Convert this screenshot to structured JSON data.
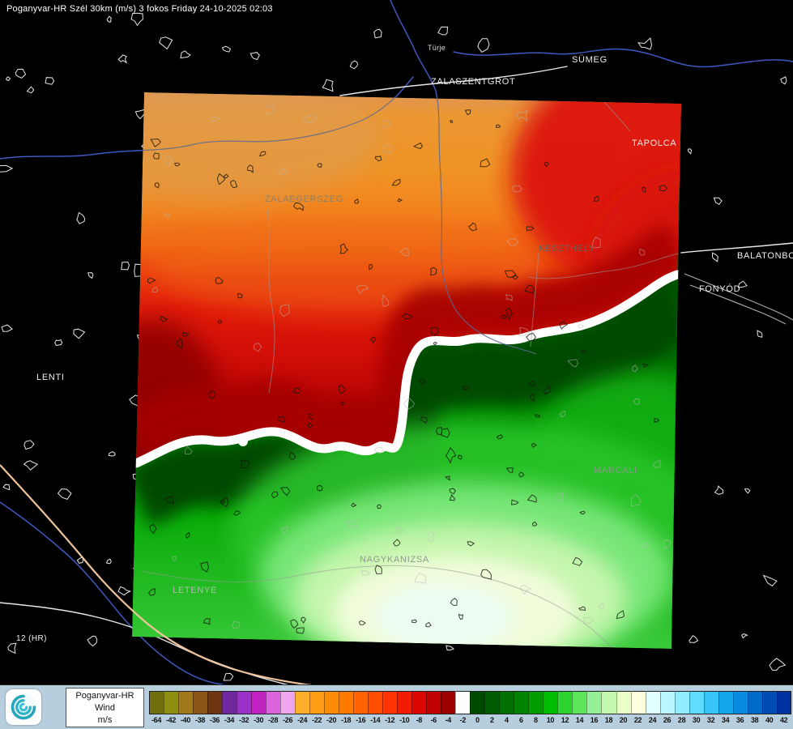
{
  "header": {
    "title": "Poganyvar-HR Szél 30km (m/s) 3 fokos Friday 24-10-2025 02:03"
  },
  "map": {
    "labels": [
      {
        "name": "Türje"
      },
      {
        "name": "SÜMEG"
      },
      {
        "name": "ZALASZENTGRÓT"
      },
      {
        "name": "TAPOLCA"
      },
      {
        "name": "ZALAEGERSZEG"
      },
      {
        "name": "KESZTHELY"
      },
      {
        "name": "BALATONBO"
      },
      {
        "name": "FONYÓD"
      },
      {
        "name": "LENTI"
      },
      {
        "name": "MARCALI"
      },
      {
        "name": "NAGYKANIZSA"
      },
      {
        "name": "LETENYE"
      },
      {
        "name": "12 (HR)"
      }
    ]
  },
  "legend": {
    "model": "Poganyvar-HR",
    "variable": "Wind",
    "unit": "m/s",
    "scale": [
      {
        "value": "-64",
        "color": "#6f6f0e"
      },
      {
        "value": "-42",
        "color": "#8f8f12"
      },
      {
        "value": "-40",
        "color": "#a1781c"
      },
      {
        "value": "-38",
        "color": "#8a5416"
      },
      {
        "value": "-36",
        "color": "#6f3410"
      },
      {
        "value": "-34",
        "color": "#71289e"
      },
      {
        "value": "-32",
        "color": "#9a32c8"
      },
      {
        "value": "-30",
        "color": "#c322c3"
      },
      {
        "value": "-28",
        "color": "#dc64dc"
      },
      {
        "value": "-26",
        "color": "#eea6ee"
      },
      {
        "value": "-24",
        "color": "#ffb02a"
      },
      {
        "value": "-22",
        "color": "#ff9e16"
      },
      {
        "value": "-20",
        "color": "#ff8c06"
      },
      {
        "value": "-18",
        "color": "#ff7a00"
      },
      {
        "value": "-16",
        "color": "#ff6400"
      },
      {
        "value": "-14",
        "color": "#ff4e00"
      },
      {
        "value": "-12",
        "color": "#ff3400"
      },
      {
        "value": "-10",
        "color": "#f21a00"
      },
      {
        "value": "-8",
        "color": "#dc0600"
      },
      {
        "value": "-6",
        "color": "#c00000"
      },
      {
        "value": "-4",
        "color": "#9e0000"
      },
      {
        "value": "-2",
        "color": "#ffffff"
      },
      {
        "value": "0",
        "color": "#004a00"
      },
      {
        "value": "2",
        "color": "#005c00"
      },
      {
        "value": "4",
        "color": "#007000"
      },
      {
        "value": "6",
        "color": "#008400"
      },
      {
        "value": "8",
        "color": "#009c00"
      },
      {
        "value": "10",
        "color": "#00bc00"
      },
      {
        "value": "12",
        "color": "#2ed42e"
      },
      {
        "value": "14",
        "color": "#5ce65c"
      },
      {
        "value": "16",
        "color": "#96f096"
      },
      {
        "value": "18",
        "color": "#c4f8ae"
      },
      {
        "value": "20",
        "color": "#eaffc8"
      },
      {
        "value": "22",
        "color": "#ffffde"
      },
      {
        "value": "24",
        "color": "#e2ffff"
      },
      {
        "value": "26",
        "color": "#baf6ff"
      },
      {
        "value": "28",
        "color": "#90ecff"
      },
      {
        "value": "30",
        "color": "#60dcff"
      },
      {
        "value": "32",
        "color": "#36c4f6"
      },
      {
        "value": "34",
        "color": "#16a6ec"
      },
      {
        "value": "36",
        "color": "#088ade"
      },
      {
        "value": "38",
        "color": "#006aca"
      },
      {
        "value": "40",
        "color": "#004cb6"
      },
      {
        "value": "42",
        "color": "#0032a2"
      }
    ]
  }
}
